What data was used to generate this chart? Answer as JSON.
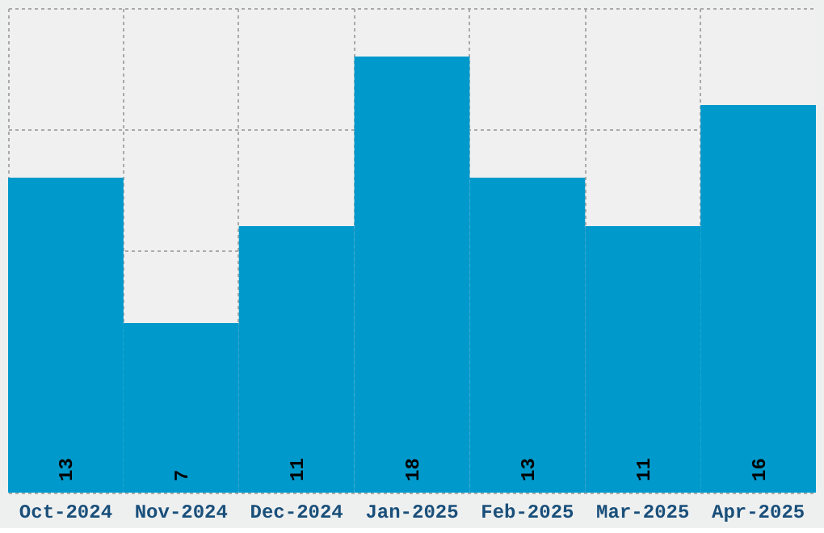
{
  "chart_data": {
    "type": "bar",
    "categories": [
      "Oct-2024",
      "Nov-2024",
      "Dec-2024",
      "Jan-2025",
      "Feb-2025",
      "Mar-2025",
      "Apr-2025"
    ],
    "values": [
      13,
      7,
      11,
      18,
      13,
      11,
      16
    ],
    "color": "#0099cc",
    "ylim": [
      0,
      20
    ],
    "grid": true,
    "data_labels": true,
    "tick_labels": "x"
  }
}
